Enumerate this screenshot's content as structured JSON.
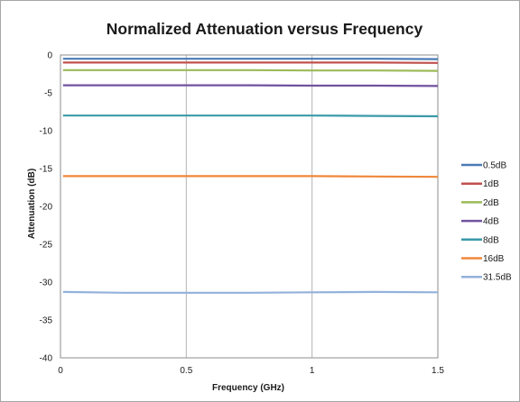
{
  "chart_data": {
    "type": "line",
    "title": "Normalized Attenuation versus Frequency",
    "xlabel": "Frequency (GHz)",
    "ylabel": "Attenuation (dB)",
    "xlim": [
      0,
      1.5
    ],
    "ylim": [
      -40,
      0
    ],
    "x_ticks": [
      "0",
      "0.5",
      "1",
      "1.5"
    ],
    "y_ticks": [
      "0",
      "-5",
      "-10",
      "-15",
      "-20",
      "-25",
      "-30",
      "-35",
      "-40"
    ],
    "grid": "vertical",
    "legend_position": "right",
    "x": [
      0.01,
      0.25,
      0.5,
      0.75,
      1.0,
      1.25,
      1.5
    ],
    "series": [
      {
        "name": "0.5dB",
        "color": "#4a7ab5",
        "values": [
          -0.5,
          -0.5,
          -0.5,
          -0.5,
          -0.5,
          -0.5,
          -0.55
        ]
      },
      {
        "name": "1dB",
        "color": "#c0504d",
        "values": [
          -1.0,
          -1.0,
          -1.0,
          -1.0,
          -1.0,
          -1.0,
          -1.05
        ]
      },
      {
        "name": "2dB",
        "color": "#9bbb59",
        "values": [
          -2.0,
          -2.0,
          -2.0,
          -2.0,
          -2.05,
          -2.05,
          -2.1
        ]
      },
      {
        "name": "4dB",
        "color": "#7152a0",
        "values": [
          -4.0,
          -4.0,
          -4.0,
          -4.0,
          -4.05,
          -4.05,
          -4.1
        ]
      },
      {
        "name": "8dB",
        "color": "#3a9aa8",
        "values": [
          -8.0,
          -8.0,
          -8.0,
          -8.0,
          -8.0,
          -8.05,
          -8.1
        ]
      },
      {
        "name": "16dB",
        "color": "#f0873a",
        "values": [
          -16.0,
          -16.0,
          -16.0,
          -16.0,
          -16.0,
          -16.05,
          -16.1
        ]
      },
      {
        "name": "31.5dB",
        "color": "#93b1db",
        "values": [
          -31.3,
          -31.4,
          -31.4,
          -31.4,
          -31.35,
          -31.3,
          -31.35
        ]
      }
    ]
  }
}
